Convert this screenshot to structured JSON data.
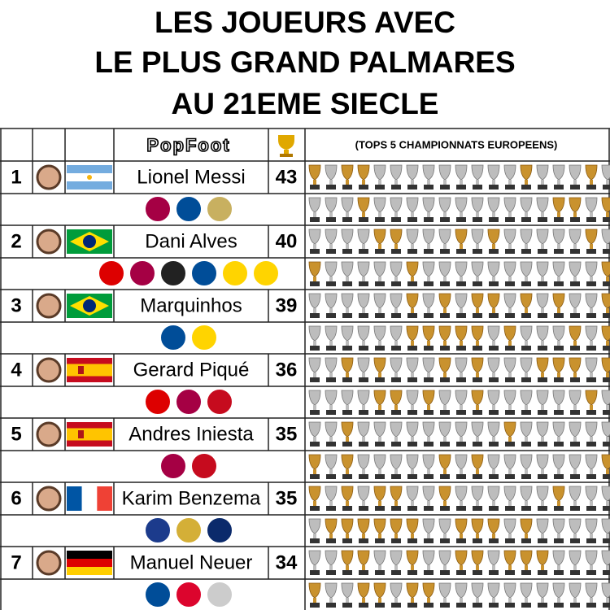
{
  "title": [
    "LES JOUEURS AVEC",
    "LE PLUS GRAND PALMARES",
    "AU 21EME SIECLE"
  ],
  "header": {
    "logo": "PopFoot",
    "note": "(TOPS 5 CHAMPIONNATS EUROPEENS)"
  },
  "rows": [
    {
      "rank": 1,
      "name": "Lionel Messi",
      "titles": 43
    },
    {
      "rank": 2,
      "name": "Dani Alves",
      "titles": 40
    },
    {
      "rank": 3,
      "name": "Marquinhos",
      "titles": 39
    },
    {
      "rank": 4,
      "name": "Gerard Piqué",
      "titles": 36
    },
    {
      "rank": 5,
      "name": "Andres Iniesta",
      "titles": 35
    },
    {
      "rank": 6,
      "name": "Karim Benzema",
      "titles": 35
    },
    {
      "rank": 7,
      "name": "Manuel Neuer",
      "titles": 34
    }
  ]
}
